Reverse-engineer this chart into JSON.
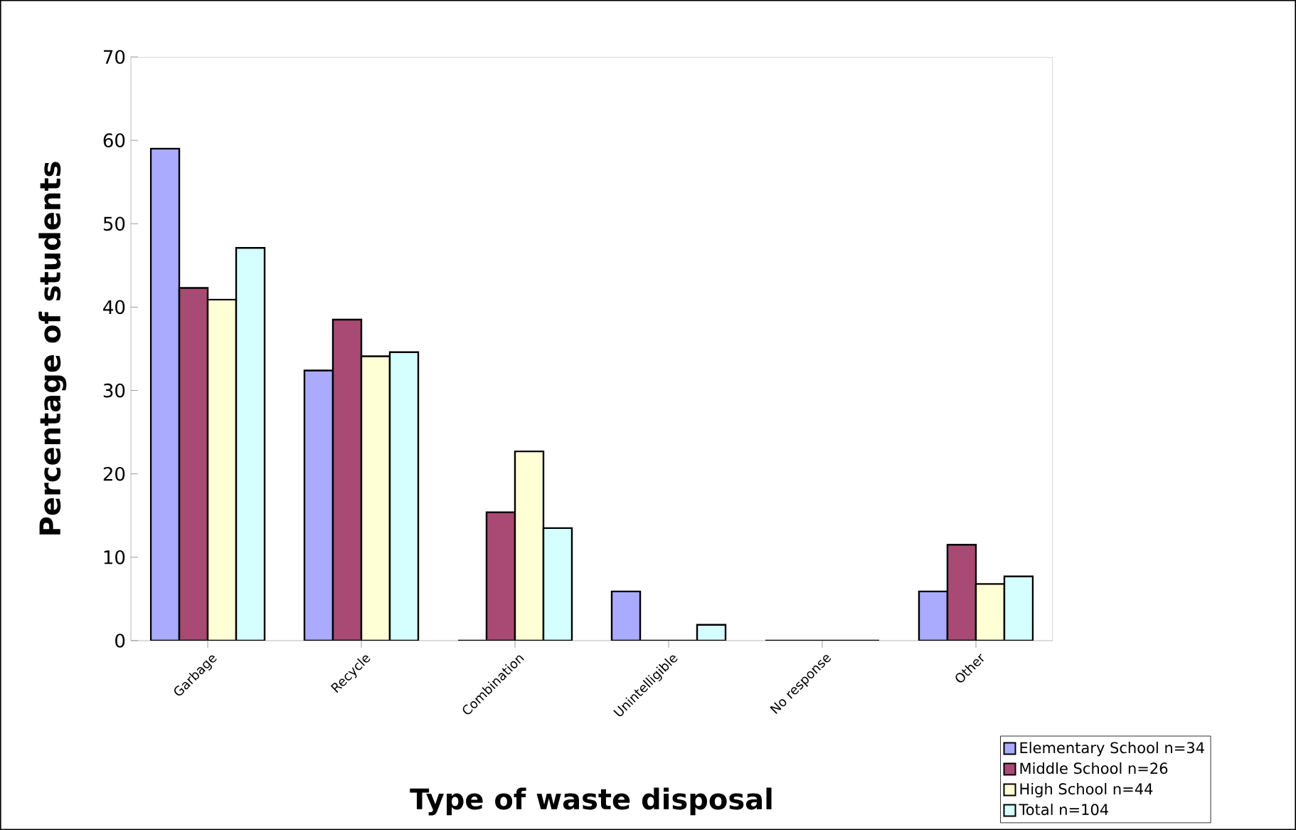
{
  "chart_data": {
    "type": "bar",
    "xlabel": "Type of waste disposal",
    "ylabel": "Percentage of students",
    "categories": [
      "Garbage",
      "Recycle",
      "Combination",
      "Unintelligible",
      "No response",
      "Other"
    ],
    "series": [
      {
        "name": "Elementary School n=34",
        "color": "#aaaaff",
        "values": [
          59,
          32.4,
          0,
          5.9,
          0,
          5.9
        ]
      },
      {
        "name": "Middle School n=26",
        "color": "#a94a74",
        "values": [
          42.3,
          38.5,
          15.4,
          0,
          0,
          11.5
        ]
      },
      {
        "name": "High School n=44",
        "color": "#ffffd5",
        "values": [
          40.9,
          34.1,
          22.7,
          0,
          0,
          6.8
        ]
      },
      {
        "name": "Total n=104",
        "color": "#d5ffff",
        "values": [
          47.1,
          34.6,
          13.5,
          1.9,
          0,
          7.7
        ]
      }
    ],
    "ylim": [
      0,
      70
    ],
    "yticks": [
      0,
      10,
      20,
      30,
      40,
      50,
      60,
      70
    ],
    "grid": false,
    "legend": "bottom right"
  }
}
